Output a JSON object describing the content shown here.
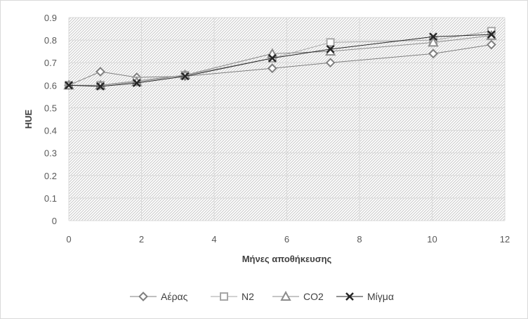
{
  "chart_data": {
    "type": "line",
    "title": "",
    "xlabel": "Μήνες αποθήκευσης",
    "ylabel": "HUE",
    "xlim": [
      0,
      12
    ],
    "ylim": [
      0,
      0.9
    ],
    "xticks": [
      0,
      2,
      4,
      6,
      8,
      10,
      12
    ],
    "yticks": [
      0,
      0.1,
      0.2,
      0.3,
      0.4,
      0.5,
      0.6,
      0.7,
      0.8,
      0.9
    ],
    "grid": true,
    "legend": "bottom",
    "series": [
      {
        "name": "Αέρας",
        "marker": "diamond",
        "color": "#7f7f7f",
        "x": [
          0,
          0.87,
          1.87,
          3.2,
          5.6,
          7.2,
          10.03,
          11.63
        ],
        "y": [
          0.6,
          0.66,
          0.635,
          0.64,
          0.675,
          0.7,
          0.74,
          0.78
        ]
      },
      {
        "name": "N2",
        "marker": "square",
        "color": "#a6a6a6",
        "x": [
          0,
          0.87,
          1.87,
          3.2,
          5.6,
          7.2,
          10.03,
          11.63
        ],
        "y": [
          0.6,
          0.6,
          0.62,
          0.645,
          0.72,
          0.79,
          0.8,
          0.84
        ]
      },
      {
        "name": "CO2",
        "marker": "triangle",
        "color": "#8c8c8c",
        "x": [
          0,
          0.87,
          1.87,
          3.2,
          5.6,
          7.2,
          10.03,
          11.63
        ],
        "y": [
          0.6,
          0.6,
          0.615,
          0.645,
          0.74,
          0.75,
          0.79,
          0.82
        ]
      },
      {
        "name": "Μίγμα",
        "marker": "x",
        "color": "#262626",
        "x": [
          0,
          0.87,
          1.87,
          3.2,
          5.6,
          7.2,
          10.03,
          11.63
        ],
        "y": [
          0.6,
          0.595,
          0.61,
          0.64,
          0.72,
          0.76,
          0.815,
          0.825
        ]
      }
    ]
  }
}
